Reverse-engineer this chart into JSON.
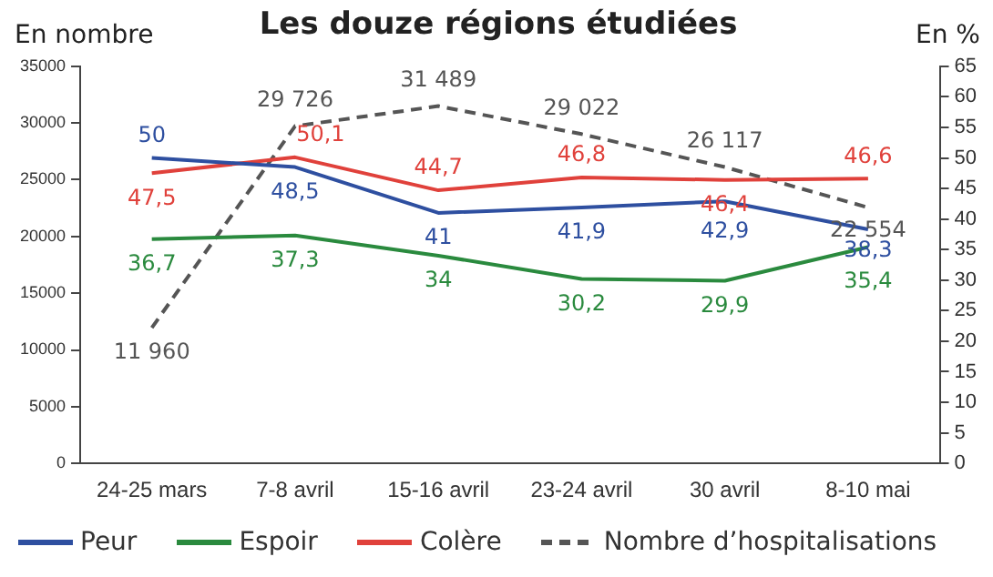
{
  "chart_data": {
    "type": "line",
    "title": "Les douze régions étudiées",
    "ylabel": "En nombre",
    "y2label": "En %",
    "categories": [
      "24-25 mars",
      "7-8 avril",
      "15-16 avril",
      "23-24 avril",
      "30 avril",
      "8-10 mai"
    ],
    "series": [
      {
        "name": "Peur",
        "color": "#2e4fa0",
        "axis": "y2",
        "values": [
          50,
          48.5,
          41,
          41.9,
          42.9,
          38.3
        ],
        "value_labels": [
          "50",
          "48,5",
          "41",
          "41,9",
          "42,9",
          "38,3"
        ]
      },
      {
        "name": "Espoir",
        "color": "#2a8a3e",
        "axis": "y2",
        "values": [
          36.7,
          37.3,
          34,
          30.2,
          29.9,
          35.4
        ],
        "value_labels": [
          "36,7",
          "37,3",
          "34",
          "30,2",
          "29,9",
          "35,4"
        ]
      },
      {
        "name": "Colère",
        "color": "#e0413b",
        "axis": "y2",
        "values": [
          47.5,
          50.1,
          44.7,
          46.8,
          46.4,
          46.6
        ],
        "value_labels": [
          "47,5",
          "50,1",
          "44,7",
          "46,8",
          "46,4",
          "46,6"
        ]
      },
      {
        "name": "Nombre d’hospitalisations",
        "color": "#555555",
        "line_style": "dashed",
        "values": [
          11960,
          29726,
          31489,
          29022,
          26117,
          22554
        ],
        "value_labels": [
          "11 960",
          "29 726",
          "31 489",
          "29 022",
          "26 117",
          "22 554"
        ]
      }
    ],
    "ylim": [
      0,
      35000
    ],
    "yticks": [
      0,
      5000,
      10000,
      15000,
      20000,
      25000,
      30000,
      35000
    ],
    "y2lim": [
      0,
      65
    ],
    "y2ticks": [
      0,
      5,
      10,
      15,
      20,
      25,
      30,
      35,
      40,
      45,
      50,
      55,
      60,
      65
    ],
    "grid": false,
    "legend": "bottom",
    "marker": "none"
  }
}
